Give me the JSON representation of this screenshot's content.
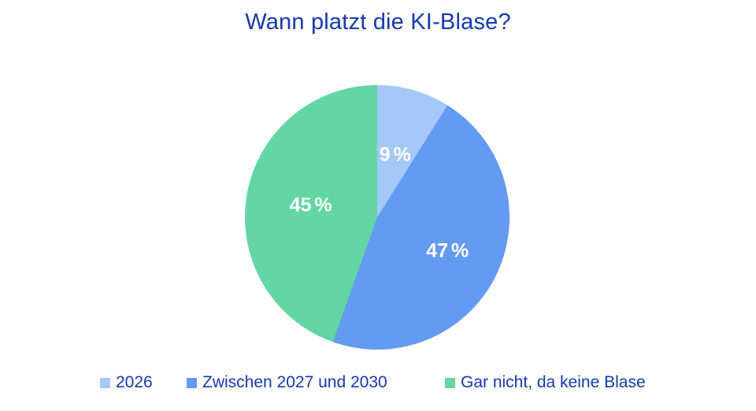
{
  "title": {
    "text": "Wann platzt die KI-Blase?",
    "color": "#1638b2"
  },
  "chart_data": {
    "type": "pie",
    "title": "Wann platzt die KI-Blase?",
    "start_angle_deg": 0,
    "direction": "clockwise",
    "total": 100,
    "slices": [
      {
        "label": "2026",
        "value": 9,
        "display": "9 %",
        "color": "#a5c8f8"
      },
      {
        "label": "Zwischen 2027 und 2030",
        "value": 47,
        "display": "47 %",
        "color": "#639af2"
      },
      {
        "label": "Gar nicht, da keine Blase",
        "value": 45,
        "display": "45 %",
        "color": "#63d6a4"
      }
    ],
    "data_label_color": "#ffffff",
    "legend_position": "bottom",
    "legend_text_color": "#1638b2",
    "background": "#ffffff"
  }
}
